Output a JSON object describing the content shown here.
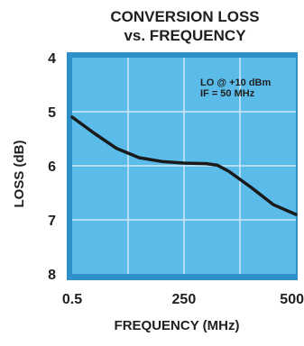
{
  "chart_data": {
    "type": "line",
    "title": "CONVERSION LOSS",
    "subtitle": "vs. FREQUENCY",
    "xlabel": "FREQUENCY (MHz)",
    "ylabel": "LOSS (dB)",
    "xlim": [
      0.5,
      500
    ],
    "ylim": [
      8,
      4
    ],
    "x_ticks": [
      "0.5",
      "250",
      "500"
    ],
    "y_ticks": [
      "4",
      "5",
      "6",
      "7",
      "8"
    ],
    "grid": true,
    "annotation": [
      "LO @ +10 dBm",
      "IF = 50 MHz"
    ],
    "series": [
      {
        "x": [
          0.5,
          50,
          100,
          150,
          200,
          250,
          300,
          325,
          350,
          400,
          450,
          500
        ],
        "y": [
          5.1,
          5.4,
          5.68,
          5.85,
          5.92,
          5.95,
          5.96,
          5.99,
          6.1,
          6.4,
          6.72,
          6.9
        ]
      }
    ],
    "colors": {
      "plot_bg": "#5bbcea",
      "grid": "#cfe9f7",
      "frame_shadow": "#2f8fc8",
      "line": "#1a1a1a"
    }
  }
}
